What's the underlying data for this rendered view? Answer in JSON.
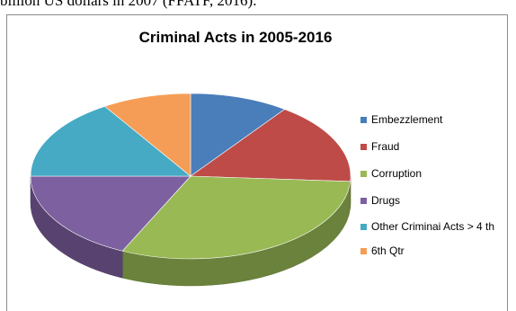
{
  "document": {
    "text_above": "billion US dollars in 2007 (FFATF, 2016)."
  },
  "chart_data": {
    "type": "pie",
    "style": "3d",
    "title": "Criminal Acts in 2005-2016",
    "legend_position": "right",
    "categories": [
      "Embezzlement",
      "Fraud",
      "Corruption",
      "Drugs",
      "Other Criminai Acts > 4 th",
      "6th Qtr"
    ],
    "values": [
      10,
      16,
      31,
      18,
      16,
      9
    ],
    "colors": [
      "#4a7ebb",
      "#be4b48",
      "#98b954",
      "#7d60a0",
      "#46aac5",
      "#f59d56"
    ]
  }
}
